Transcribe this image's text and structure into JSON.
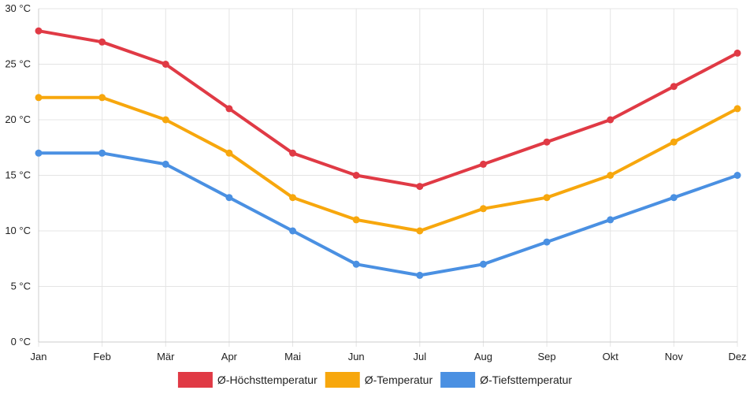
{
  "chart_data": {
    "type": "line",
    "title": "",
    "xlabel": "",
    "ylabel": "",
    "categories": [
      "Jan",
      "Feb",
      "Mär",
      "Apr",
      "Mai",
      "Jun",
      "Jul",
      "Aug",
      "Sep",
      "Okt",
      "Nov",
      "Dez"
    ],
    "ylim": [
      0,
      30
    ],
    "y_ticks": [
      0,
      5,
      10,
      15,
      20,
      25,
      30
    ],
    "y_tick_labels": [
      "0 °C",
      "5 °C",
      "10 °C",
      "15 °C",
      "20 °C",
      "25 °C",
      "30 °C"
    ],
    "grid": true,
    "legend_position": "bottom",
    "series": [
      {
        "name": "Ø-Höchsttemperatur",
        "color": "#e03a45",
        "values": [
          28,
          27,
          25,
          21,
          17,
          15,
          14,
          16,
          18,
          20,
          23,
          26
        ]
      },
      {
        "name": "Ø-Temperatur",
        "color": "#f7a70d",
        "values": [
          22,
          22,
          20,
          17,
          13,
          11,
          10,
          12,
          13,
          15,
          18,
          21
        ]
      },
      {
        "name": "Ø-Tiefsttemperatur",
        "color": "#4a90e2",
        "values": [
          17,
          17,
          16,
          13,
          10,
          7,
          6,
          7,
          9,
          11,
          13,
          15
        ]
      }
    ]
  }
}
